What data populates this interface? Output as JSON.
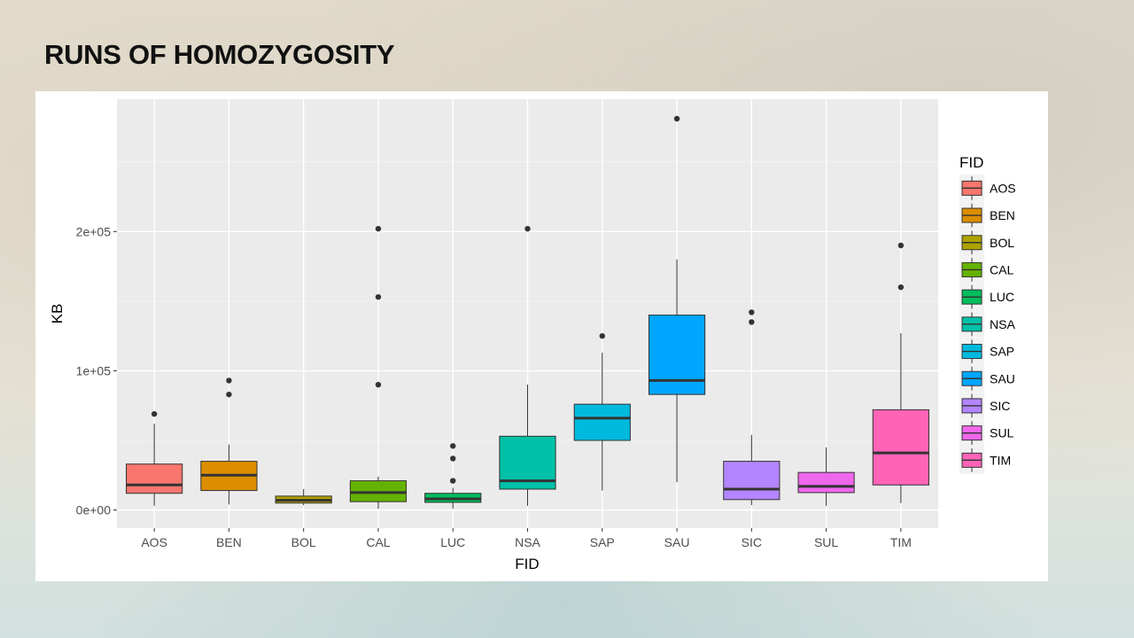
{
  "slide": {
    "title": "RUNS OF HOMOZYGOSITY"
  },
  "chart_data": {
    "type": "boxplot",
    "title": "",
    "xlabel": "FID",
    "ylabel": "KB",
    "ylim": [
      -13000,
      295000
    ],
    "yticks": [
      0,
      100000,
      200000
    ],
    "ytick_labels": [
      "0e+00",
      "1e+05",
      "2e+05"
    ],
    "grid": true,
    "legend": {
      "title": "FID",
      "placement": "right"
    },
    "categories": [
      "AOS",
      "BEN",
      "BOL",
      "CAL",
      "LUC",
      "NSA",
      "SAP",
      "SAU",
      "SIC",
      "SUL",
      "TIM"
    ],
    "colors": [
      "#F8766D",
      "#DB8E00",
      "#AEA200",
      "#64B200",
      "#00BD5C",
      "#00C1A7",
      "#00BADE",
      "#00A6FF",
      "#B385FF",
      "#EF67EB",
      "#FF63B6"
    ],
    "boxes": [
      {
        "min": 3000,
        "q1": 12000,
        "median": 18000,
        "q3": 33000,
        "max": 62000,
        "outliers": [
          69000
        ]
      },
      {
        "min": 4000,
        "q1": 14000,
        "median": 25000,
        "q3": 35000,
        "max": 47000,
        "outliers": [
          83000,
          93000
        ]
      },
      {
        "min": 3500,
        "q1": 5000,
        "median": 7000,
        "q3": 10000,
        "max": 15000,
        "outliers": []
      },
      {
        "min": 1000,
        "q1": 6000,
        "median": 12500,
        "q3": 21000,
        "max": 24000,
        "outliers": [
          90000,
          153000,
          202000
        ]
      },
      {
        "min": 1000,
        "q1": 5500,
        "median": 8000,
        "q3": 12000,
        "max": 16000,
        "outliers": [
          21000,
          37000,
          46000
        ]
      },
      {
        "min": 3000,
        "q1": 15000,
        "median": 21000,
        "q3": 53000,
        "max": 90000,
        "outliers": [
          202000
        ]
      },
      {
        "min": 14000,
        "q1": 50000,
        "median": 66000,
        "q3": 76000,
        "max": 113000,
        "outliers": [
          125000
        ]
      },
      {
        "min": 20000,
        "q1": 83000,
        "median": 93000,
        "q3": 140000,
        "max": 180000,
        "outliers": [
          281000
        ]
      },
      {
        "min": 3500,
        "q1": 7500,
        "median": 15000,
        "q3": 35000,
        "max": 54000,
        "outliers": [
          135000,
          142000
        ]
      },
      {
        "min": 3000,
        "q1": 12500,
        "median": 17000,
        "q3": 27000,
        "max": 45000,
        "outliers": []
      },
      {
        "min": 5000,
        "q1": 18000,
        "median": 41000,
        "q3": 72000,
        "max": 127000,
        "outliers": [
          160000,
          190000
        ]
      }
    ]
  }
}
